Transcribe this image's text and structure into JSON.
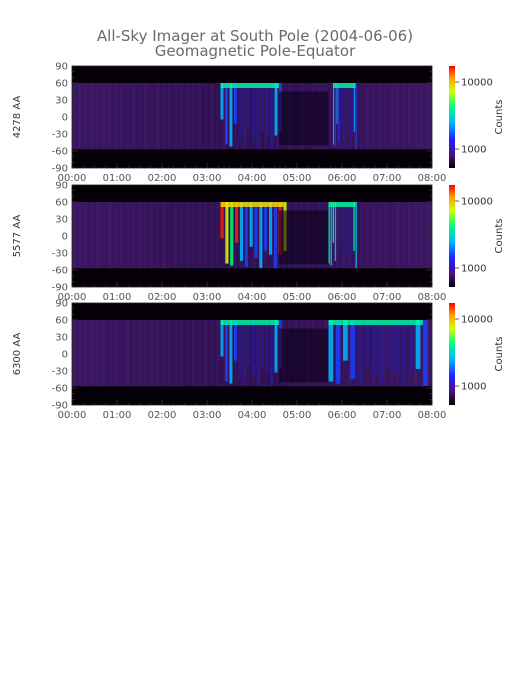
{
  "chart_data": {
    "type": "heatmap",
    "title": "All-Sky Imager at South Pole (2004-06-06)",
    "subtitle": "Geomagnetic Pole-Equator",
    "x_tick_labels": [
      "00:00",
      "01:00",
      "02:00",
      "03:00",
      "04:00",
      "05:00",
      "06:00",
      "07:00",
      "08:00"
    ],
    "x_range_hours": [
      0,
      8
    ],
    "y_ticks": [
      90,
      60,
      30,
      0,
      -30,
      -60,
      -90
    ],
    "y_range": [
      -90,
      90
    ],
    "colorbar": {
      "label": "Counts",
      "tick_labels": [
        "10000",
        "1000"
      ],
      "scale": "log"
    },
    "panels": [
      {
        "ylabel": "4278 AA",
        "colorbar_ticks": [
          "10000",
          "1000"
        ],
        "features": [
          {
            "t0": 3.3,
            "t1": 4.6,
            "intensity": 0.45
          },
          {
            "t0": 5.8,
            "t1": 6.3,
            "intensity": 0.4
          }
        ]
      },
      {
        "ylabel": "5577 AA",
        "colorbar_ticks": [
          "10000",
          "1000"
        ],
        "features": [
          {
            "t0": 3.3,
            "t1": 4.7,
            "intensity": 0.95
          },
          {
            "t0": 5.7,
            "t1": 6.3,
            "intensity": 0.7
          }
        ]
      },
      {
        "ylabel": "6300 AA",
        "colorbar_ticks": [
          "10000",
          "1000"
        ],
        "features": [
          {
            "t0": 3.3,
            "t1": 4.6,
            "intensity": 0.55
          },
          {
            "t0": 5.7,
            "t1": 7.8,
            "intensity": 0.45
          }
        ]
      }
    ]
  }
}
